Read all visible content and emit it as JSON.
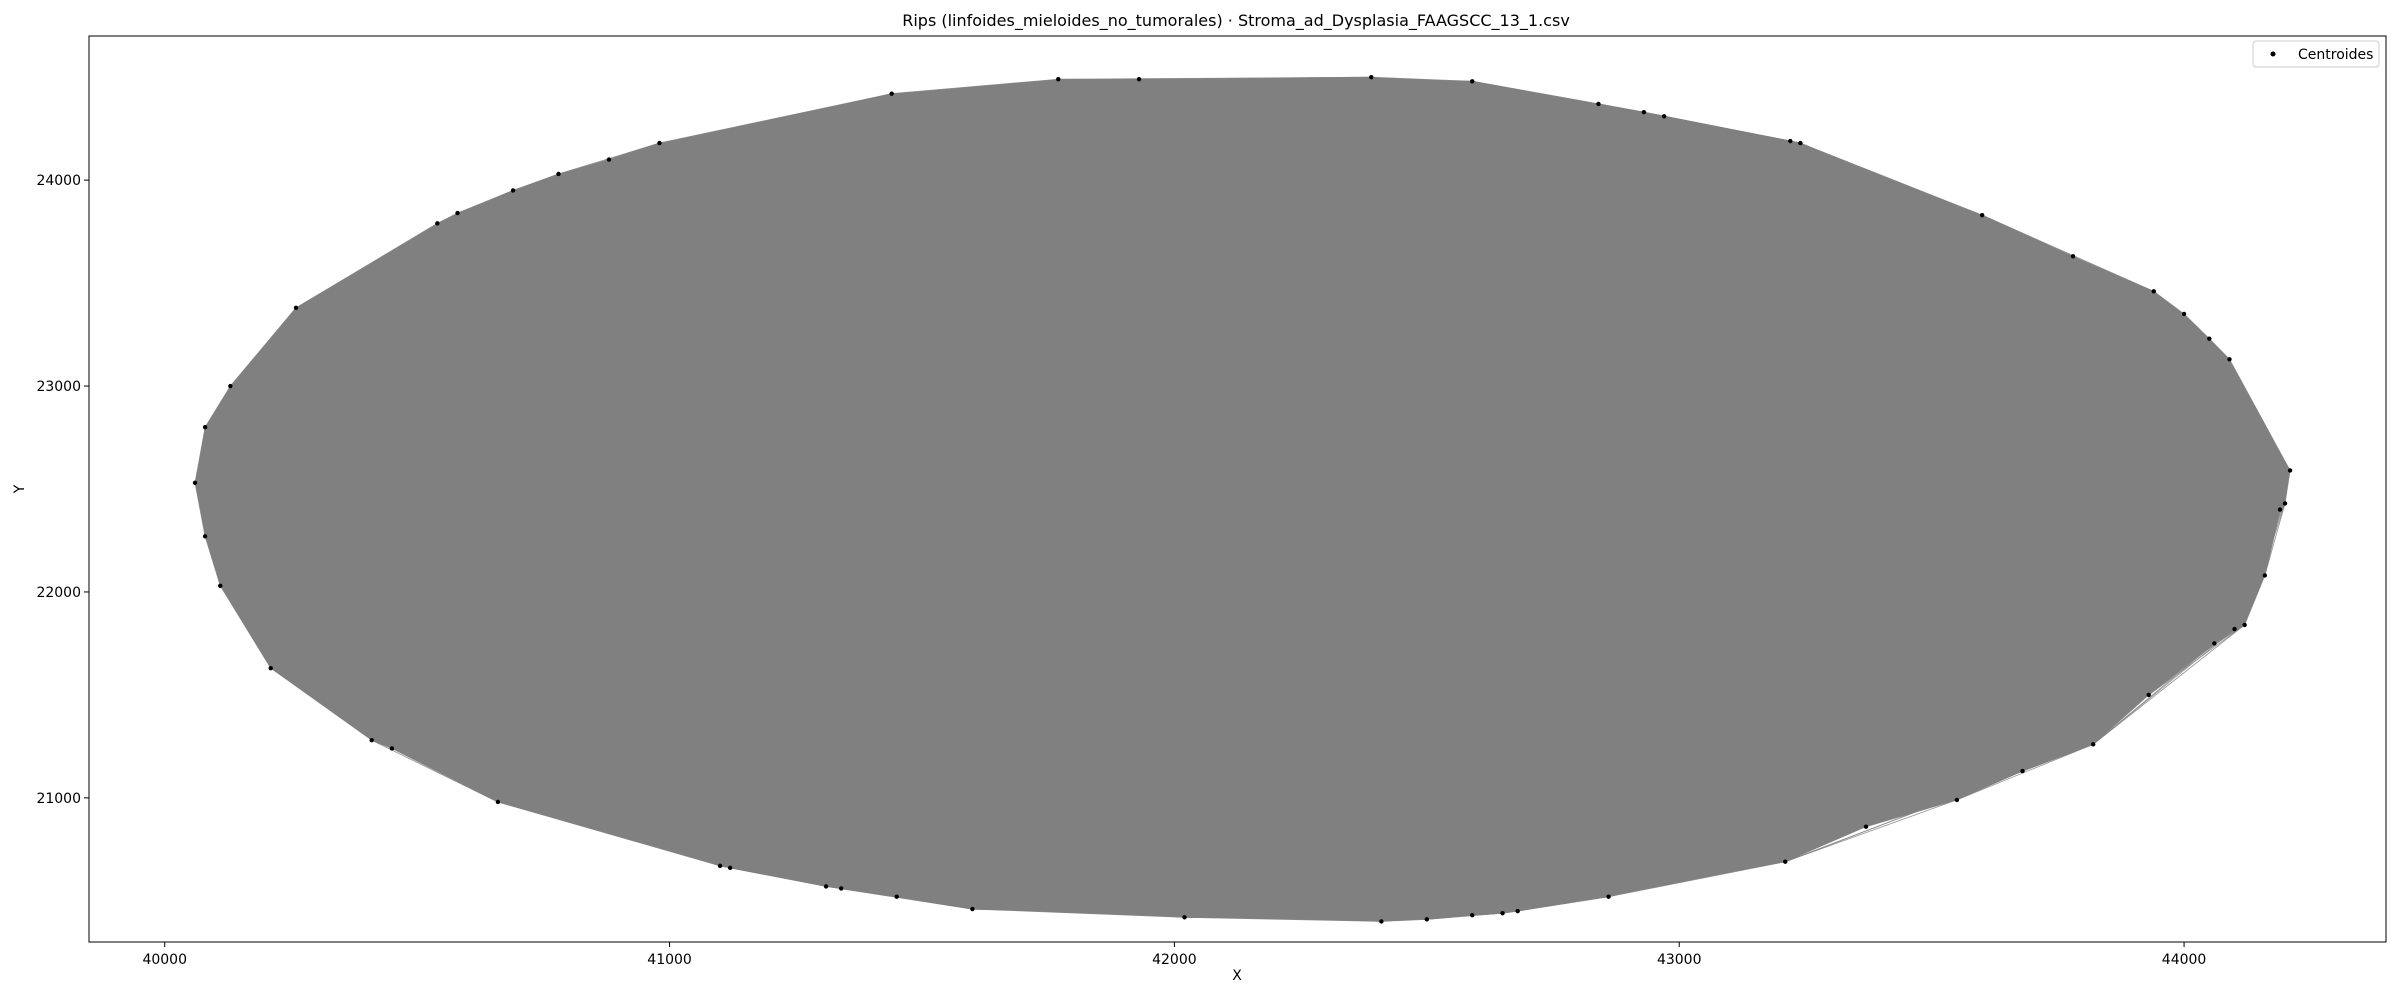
{
  "chart_data": {
    "type": "scatter",
    "title": "Rips (linfoides_mieloides_no_tumorales) · Stroma_ad_Dysplasia_FAAGSCC_13_1.csv",
    "xlabel": "X",
    "ylabel": "Y",
    "xlim": [
      39850,
      44400
    ],
    "ylim": [
      20300,
      24700
    ],
    "xticks": [
      40000,
      41000,
      42000,
      43000,
      44000
    ],
    "yticks": [
      21000,
      22000,
      23000,
      24000
    ],
    "grid": false,
    "legend": {
      "placement": "top-right",
      "entries": [
        "Centroides"
      ]
    },
    "edge_color": "#808080",
    "point_color": "#000000",
    "series": [
      {
        "name": "Centroides",
        "kind": "points",
        "points": [
          [
            40060,
            22530
          ],
          [
            40080,
            22800
          ],
          [
            40080,
            22270
          ],
          [
            40110,
            22030
          ],
          [
            40130,
            23000
          ],
          [
            40210,
            21630
          ],
          [
            40260,
            23380
          ],
          [
            40410,
            21280
          ],
          [
            40450,
            21240
          ],
          [
            40540,
            23790
          ],
          [
            40580,
            23840
          ],
          [
            40660,
            20980
          ],
          [
            40690,
            23950
          ],
          [
            40780,
            24030
          ],
          [
            40880,
            24100
          ],
          [
            40980,
            24180
          ],
          [
            41100,
            20670
          ],
          [
            41120,
            20660
          ],
          [
            41310,
            20570
          ],
          [
            41340,
            20560
          ],
          [
            41440,
            24420
          ],
          [
            41450,
            20520
          ],
          [
            41600,
            20460
          ],
          [
            41770,
            24490
          ],
          [
            41930,
            24490
          ],
          [
            42020,
            20420
          ],
          [
            42390,
            24500
          ],
          [
            42410,
            20400
          ],
          [
            42500,
            20410
          ],
          [
            42590,
            20430
          ],
          [
            42590,
            24480
          ],
          [
            42650,
            20440
          ],
          [
            42680,
            20450
          ],
          [
            42840,
            24370
          ],
          [
            42860,
            20520
          ],
          [
            42930,
            24330
          ],
          [
            42970,
            24310
          ],
          [
            43220,
            24190
          ],
          [
            43240,
            24180
          ],
          [
            43210,
            20690
          ],
          [
            43370,
            20860
          ],
          [
            43550,
            20990
          ],
          [
            43600,
            23830
          ],
          [
            43680,
            21130
          ],
          [
            43780,
            23630
          ],
          [
            43820,
            21260
          ],
          [
            43930,
            21500
          ],
          [
            43940,
            23460
          ],
          [
            44000,
            23350
          ],
          [
            44050,
            23230
          ],
          [
            44060,
            21750
          ],
          [
            44090,
            23130
          ],
          [
            44100,
            21820
          ],
          [
            44120,
            21840
          ],
          [
            44160,
            22080
          ],
          [
            44190,
            22400
          ],
          [
            44200,
            22430
          ],
          [
            44210,
            22590
          ]
        ]
      }
    ]
  }
}
